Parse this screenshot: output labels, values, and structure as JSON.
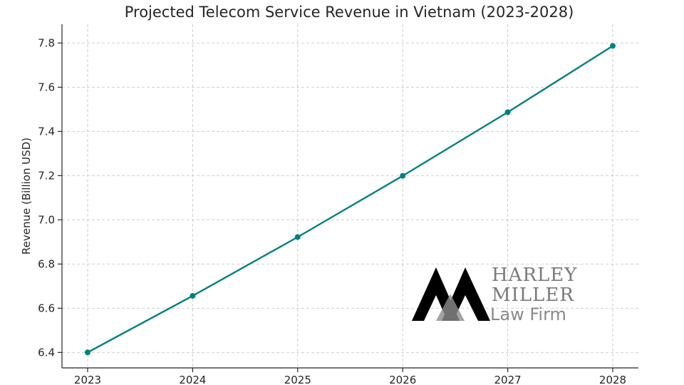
{
  "chart_data": {
    "type": "line",
    "title": "Projected Telecom Service Revenue in Vietnam (2023-2028)",
    "xlabel": "",
    "ylabel": "Revenue (Billion USD)",
    "x": [
      "2023",
      "2024",
      "2025",
      "2026",
      "2027",
      "2028"
    ],
    "series": [
      {
        "name": "Revenue",
        "values": [
          6.4,
          6.656,
          6.922,
          7.199,
          7.487,
          7.787
        ]
      }
    ],
    "ylim": [
      6.33,
      7.885
    ],
    "yticks": [
      "6.4",
      "6.6",
      "6.8",
      "7.0",
      "7.2",
      "7.4",
      "7.6",
      "7.8"
    ],
    "grid": true,
    "line_color": "#008080"
  },
  "watermark": {
    "line1": "HARLEY",
    "line2": "MILLER",
    "line3": "Law Firm"
  }
}
